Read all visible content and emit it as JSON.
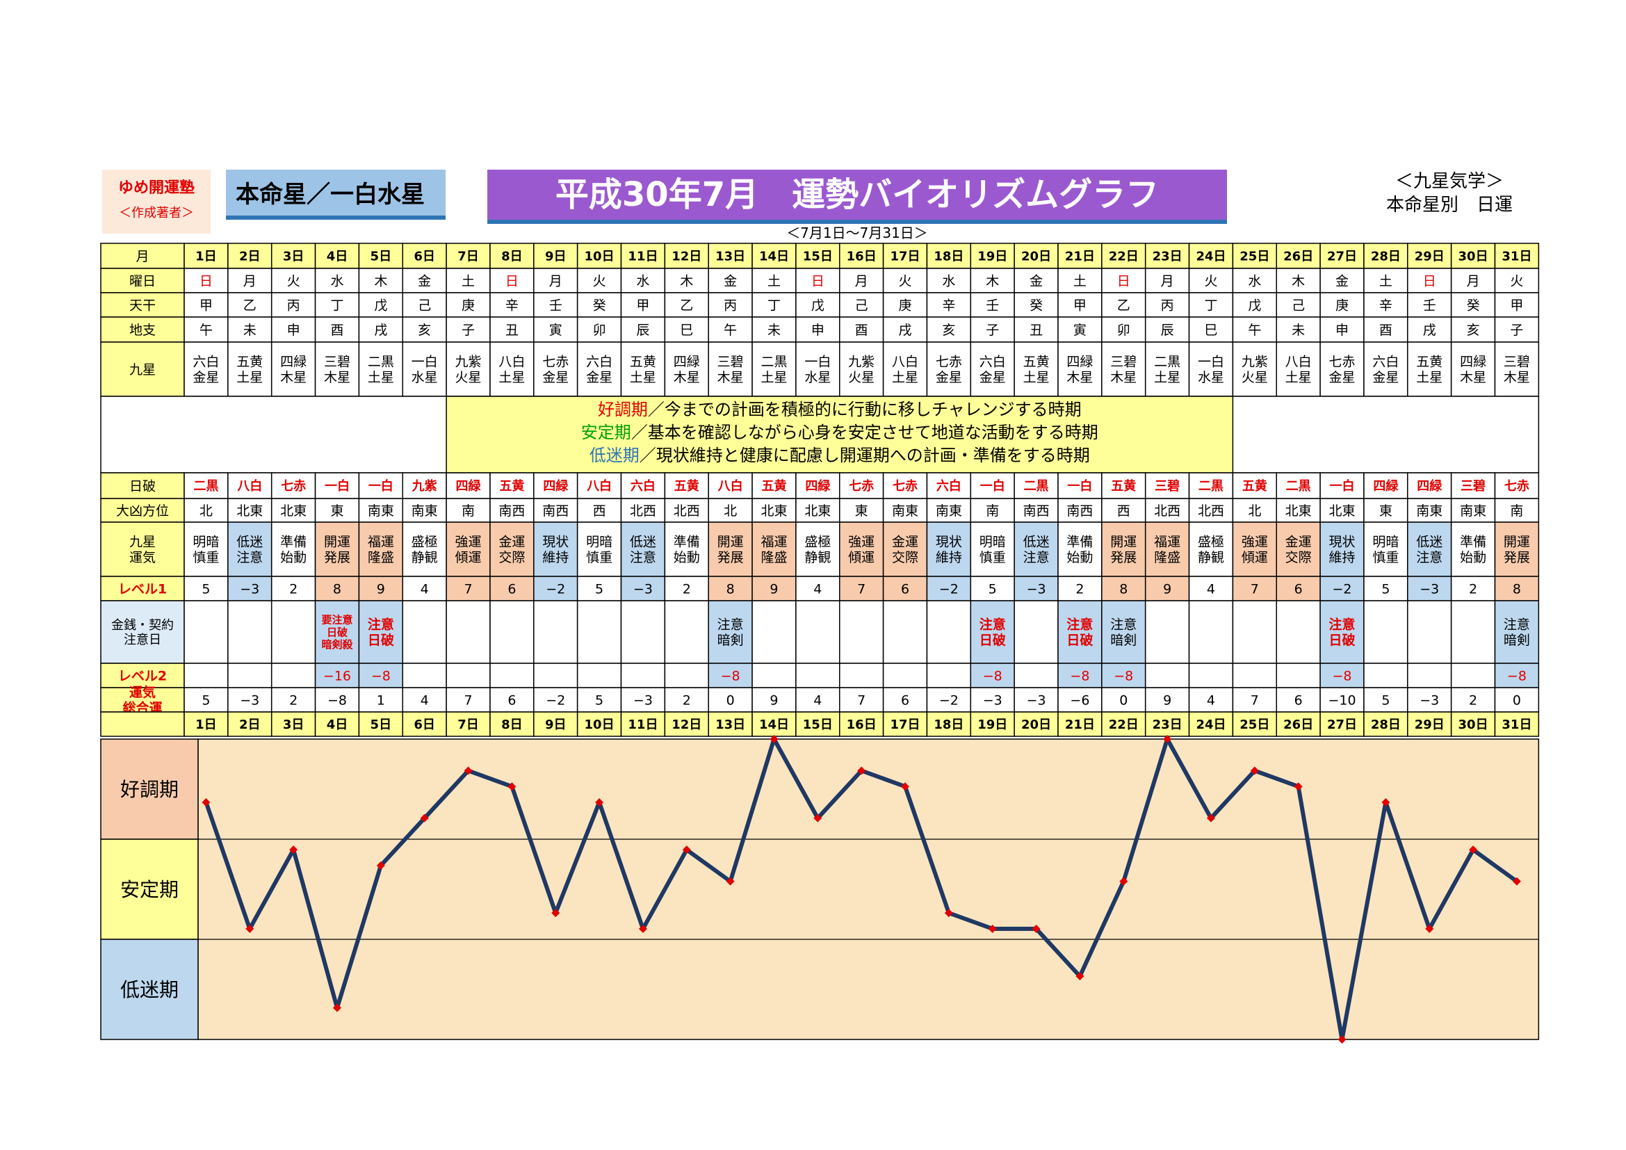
{
  "header": {
    "brand_name": "ゆめ開運塾",
    "brand_author": "＜作成著者＞",
    "honmei": "本命星／一白水星",
    "title": "平成30年7月　運勢バイオリズムグラフ",
    "period": "＜7月1日～7月31日＞",
    "kyusei_title": "＜九星気学＞",
    "kyusei_sub": "本命星別　日運"
  },
  "row_labels": {
    "month": "月",
    "weekday": "曜日",
    "tenkan": "天干",
    "chishi": "地支",
    "kyusei": "九星",
    "nippa": "日破",
    "daikyo": "大凶方位",
    "unki": "九星\n運気",
    "level1": "レベル1",
    "money": "金銭・契約\n注意日",
    "level2": "レベル2",
    "total": "運気\n総合運"
  },
  "legend": [
    {
      "term": "好調期",
      "text": "／今までの計画を積極的に行動に移しチャレンジする時期",
      "color": "#e00000"
    },
    {
      "term": "安定期",
      "text": "／基本を確認しながら心身を安定させて地道な活動をする時期",
      "color": "#00a000"
    },
    {
      "term": "低迷期",
      "text": "／現状維持と健康に配慮し開運期への計画・準備をする時期",
      "color": "#2e75b6"
    }
  ],
  "zones": [
    "好調期",
    "安定期",
    "低迷期"
  ],
  "colors": {
    "header_yellow": "#ffff99",
    "high": "#f8cbad",
    "low": "#bdd7ee",
    "mid": "#ffff99",
    "graph_bg": "#fbe5c0",
    "line": "#1f3864",
    "marker": "#e00000",
    "red_text": "#e00000"
  },
  "days": [
    {
      "d": "1日",
      "w": "日",
      "t": "甲",
      "c": "午",
      "k": "六白\n金星",
      "np": "二黒",
      "dir": "北",
      "u": "明暗\n慎重",
      "l1": "5",
      "l1t": "",
      "m": "",
      "l2": "",
      "tot": "5"
    },
    {
      "d": "2日",
      "w": "月",
      "t": "乙",
      "c": "未",
      "k": "五黄\n土星",
      "np": "八白",
      "dir": "北東",
      "u": "低迷\n注意",
      "l1": "−3",
      "l1t": "low",
      "m": "",
      "l2": "",
      "tot": "−3"
    },
    {
      "d": "3日",
      "w": "火",
      "t": "丙",
      "c": "申",
      "k": "四緑\n木星",
      "np": "七赤",
      "dir": "北東",
      "u": "準備\n始動",
      "l1": "2",
      "l1t": "",
      "m": "",
      "l2": "",
      "tot": "2"
    },
    {
      "d": "4日",
      "w": "水",
      "t": "丁",
      "c": "酉",
      "k": "三碧\n木星",
      "np": "一白",
      "dir": "東",
      "u": "開運\n発展",
      "l1": "8",
      "l1t": "high",
      "m": "要注意\n日破\n暗剣殺",
      "mt": "red",
      "l2": "−16",
      "tot": "−8"
    },
    {
      "d": "5日",
      "w": "木",
      "t": "戊",
      "c": "戌",
      "k": "二黒\n土星",
      "np": "一白",
      "dir": "南東",
      "u": "福運\n隆盛",
      "l1": "9",
      "l1t": "high",
      "m": "注意\n日破",
      "mt": "red",
      "l2": "−8",
      "tot": "1"
    },
    {
      "d": "6日",
      "w": "金",
      "t": "己",
      "c": "亥",
      "k": "一白\n水星",
      "np": "九紫",
      "dir": "南東",
      "u": "盛極\n静観",
      "l1": "4",
      "l1t": "",
      "m": "",
      "l2": "",
      "tot": "4"
    },
    {
      "d": "7日",
      "w": "土",
      "t": "庚",
      "c": "子",
      "k": "九紫\n火星",
      "np": "四緑",
      "dir": "南",
      "u": "強運\n傾運",
      "l1": "7",
      "l1t": "high",
      "m": "",
      "l2": "",
      "tot": "7"
    },
    {
      "d": "8日",
      "w": "日",
      "t": "辛",
      "c": "丑",
      "k": "八白\n土星",
      "np": "五黄",
      "dir": "南西",
      "u": "金運\n交際",
      "l1": "6",
      "l1t": "high",
      "m": "",
      "l2": "",
      "tot": "6"
    },
    {
      "d": "9日",
      "w": "月",
      "t": "壬",
      "c": "寅",
      "k": "七赤\n金星",
      "np": "四緑",
      "dir": "南西",
      "u": "現状\n維持",
      "l1": "−2",
      "l1t": "low",
      "m": "",
      "l2": "",
      "tot": "−2"
    },
    {
      "d": "10日",
      "w": "火",
      "t": "癸",
      "c": "卯",
      "k": "六白\n金星",
      "np": "八白",
      "dir": "西",
      "u": "明暗\n慎重",
      "l1": "5",
      "l1t": "",
      "m": "",
      "l2": "",
      "tot": "5"
    },
    {
      "d": "11日",
      "w": "水",
      "t": "甲",
      "c": "辰",
      "k": "五黄\n土星",
      "np": "六白",
      "dir": "北西",
      "u": "低迷\n注意",
      "l1": "−3",
      "l1t": "low",
      "m": "",
      "l2": "",
      "tot": "−3"
    },
    {
      "d": "12日",
      "w": "木",
      "t": "乙",
      "c": "巳",
      "k": "四緑\n木星",
      "np": "五黄",
      "dir": "北西",
      "u": "準備\n始動",
      "l1": "2",
      "l1t": "",
      "m": "",
      "l2": "",
      "tot": "2"
    },
    {
      "d": "13日",
      "w": "金",
      "t": "丙",
      "c": "午",
      "k": "三碧\n木星",
      "np": "八白",
      "dir": "北",
      "u": "開運\n発展",
      "l1": "8",
      "l1t": "high",
      "m": "注意\n暗剣",
      "mt": "black",
      "l2": "−8",
      "tot": "0"
    },
    {
      "d": "14日",
      "w": "土",
      "t": "丁",
      "c": "未",
      "k": "二黒\n土星",
      "np": "五黄",
      "dir": "北東",
      "u": "福運\n隆盛",
      "l1": "9",
      "l1t": "high",
      "m": "",
      "l2": "",
      "tot": "9"
    },
    {
      "d": "15日",
      "w": "日",
      "t": "戊",
      "c": "申",
      "k": "一白\n水星",
      "np": "四緑",
      "dir": "北東",
      "u": "盛極\n静観",
      "l1": "4",
      "l1t": "",
      "m": "",
      "l2": "",
      "tot": "4"
    },
    {
      "d": "16日",
      "w": "月",
      "t": "己",
      "c": "酉",
      "k": "九紫\n火星",
      "np": "七赤",
      "dir": "東",
      "u": "強運\n傾運",
      "l1": "7",
      "l1t": "high",
      "m": "",
      "l2": "",
      "tot": "7"
    },
    {
      "d": "17日",
      "w": "火",
      "t": "庚",
      "c": "戌",
      "k": "八白\n土星",
      "np": "七赤",
      "dir": "南東",
      "u": "金運\n交際",
      "l1": "6",
      "l1t": "high",
      "m": "",
      "l2": "",
      "tot": "6"
    },
    {
      "d": "18日",
      "w": "水",
      "t": "辛",
      "c": "亥",
      "k": "七赤\n金星",
      "np": "六白",
      "dir": "南東",
      "u": "現状\n維持",
      "l1": "−2",
      "l1t": "low",
      "m": "",
      "l2": "",
      "tot": "−2"
    },
    {
      "d": "19日",
      "w": "木",
      "t": "壬",
      "c": "子",
      "k": "六白\n金星",
      "np": "一白",
      "dir": "南",
      "u": "明暗\n慎重",
      "l1": "5",
      "l1t": "",
      "m": "注意\n日破",
      "mt": "red",
      "l2": "−8",
      "tot": "−3"
    },
    {
      "d": "20日",
      "w": "金",
      "t": "癸",
      "c": "丑",
      "k": "五黄\n土星",
      "np": "二黒",
      "dir": "南西",
      "u": "低迷\n注意",
      "l1": "−3",
      "l1t": "low",
      "m": "",
      "l2": "",
      "tot": "−3"
    },
    {
      "d": "21日",
      "w": "土",
      "t": "甲",
      "c": "寅",
      "k": "四緑\n木星",
      "np": "一白",
      "dir": "南西",
      "u": "準備\n始動",
      "l1": "2",
      "l1t": "",
      "m": "注意\n日破",
      "mt": "red",
      "l2": "−8",
      "tot": "−6"
    },
    {
      "d": "22日",
      "w": "日",
      "t": "乙",
      "c": "卯",
      "k": "三碧\n木星",
      "np": "五黄",
      "dir": "西",
      "u": "開運\n発展",
      "l1": "8",
      "l1t": "high",
      "m": "注意\n暗剣",
      "mt": "black",
      "l2": "−8",
      "tot": "0"
    },
    {
      "d": "23日",
      "w": "月",
      "t": "丙",
      "c": "辰",
      "k": "二黒\n土星",
      "np": "三碧",
      "dir": "北西",
      "u": "福運\n隆盛",
      "l1": "9",
      "l1t": "high",
      "m": "",
      "l2": "",
      "tot": "9"
    },
    {
      "d": "24日",
      "w": "火",
      "t": "丁",
      "c": "巳",
      "k": "一白\n水星",
      "np": "二黒",
      "dir": "北西",
      "u": "盛極\n静観",
      "l1": "4",
      "l1t": "",
      "m": "",
      "l2": "",
      "tot": "4"
    },
    {
      "d": "25日",
      "w": "水",
      "t": "戊",
      "c": "午",
      "k": "九紫\n火星",
      "np": "五黄",
      "dir": "北",
      "u": "強運\n傾運",
      "l1": "7",
      "l1t": "high",
      "m": "",
      "l2": "",
      "tot": "7"
    },
    {
      "d": "26日",
      "w": "木",
      "t": "己",
      "c": "未",
      "k": "八白\n土星",
      "np": "二黒",
      "dir": "北東",
      "u": "金運\n交際",
      "l1": "6",
      "l1t": "high",
      "m": "",
      "l2": "",
      "tot": "6"
    },
    {
      "d": "27日",
      "w": "金",
      "t": "庚",
      "c": "申",
      "k": "七赤\n金星",
      "np": "一白",
      "dir": "北東",
      "u": "現状\n維持",
      "l1": "−2",
      "l1t": "low",
      "m": "注意\n日破",
      "mt": "red",
      "l2": "−8",
      "tot": "−10"
    },
    {
      "d": "28日",
      "w": "土",
      "t": "辛",
      "c": "酉",
      "k": "六白\n金星",
      "np": "四緑",
      "dir": "東",
      "u": "明暗\n慎重",
      "l1": "5",
      "l1t": "",
      "m": "",
      "l2": "",
      "tot": "5"
    },
    {
      "d": "29日",
      "w": "日",
      "t": "壬",
      "c": "戌",
      "k": "五黄\n土星",
      "np": "四緑",
      "dir": "南東",
      "u": "低迷\n注意",
      "l1": "−3",
      "l1t": "low",
      "m": "",
      "l2": "",
      "tot": "−3"
    },
    {
      "d": "30日",
      "w": "月",
      "t": "癸",
      "c": "亥",
      "k": "四緑\n木星",
      "np": "三碧",
      "dir": "南東",
      "u": "準備\n始動",
      "l1": "2",
      "l1t": "",
      "m": "",
      "l2": "",
      "tot": "2"
    },
    {
      "d": "31日",
      "w": "火",
      "t": "甲",
      "c": "子",
      "k": "三碧\n木星",
      "np": "七赤",
      "dir": "南",
      "u": "開運\n発展",
      "l1": "8",
      "l1t": "high",
      "m": "注意\n暗剣",
      "mt": "black",
      "l2": "−8",
      "tot": "0"
    }
  ],
  "chart_data": {
    "type": "line",
    "title": "",
    "xlabel": "",
    "ylabel": "",
    "categories": [
      "1日",
      "2日",
      "3日",
      "4日",
      "5日",
      "6日",
      "7日",
      "8日",
      "9日",
      "10日",
      "11日",
      "12日",
      "13日",
      "14日",
      "15日",
      "16日",
      "17日",
      "18日",
      "19日",
      "20日",
      "21日",
      "22日",
      "23日",
      "24日",
      "25日",
      "26日",
      "27日",
      "28日",
      "29日",
      "30日",
      "31日"
    ],
    "series": [
      {
        "values": [
          5,
          -3,
          2,
          -8,
          1,
          4,
          7,
          6,
          -2,
          5,
          -3,
          2,
          0,
          9,
          4,
          7,
          6,
          -2,
          -3,
          -3,
          -6,
          0,
          9,
          4,
          7,
          6,
          -10,
          5,
          -3,
          2,
          0
        ]
      }
    ],
    "ylim": [
      -10,
      9
    ],
    "bands": [
      "好調期",
      "安定期",
      "低迷期"
    ],
    "grid": false,
    "markers": true
  }
}
